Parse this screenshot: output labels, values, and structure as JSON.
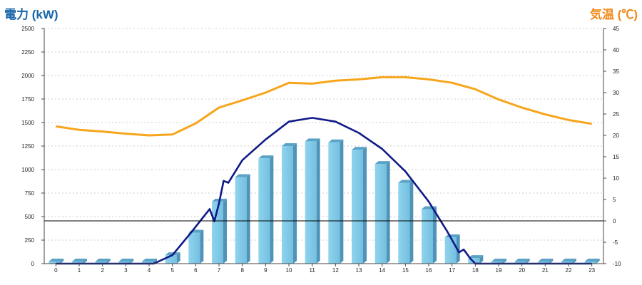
{
  "chart_data": {
    "type": "bar",
    "left_axis_title": "電力 (kW)",
    "right_axis_title": "気温 (℃)",
    "categories": [
      "0",
      "1",
      "2",
      "3",
      "4",
      "5",
      "6",
      "7",
      "8",
      "9",
      "10",
      "11",
      "12",
      "13",
      "14",
      "15",
      "16",
      "17",
      "18",
      "19",
      "20",
      "21",
      "22",
      "23"
    ],
    "left_ticks": [
      "0",
      "250",
      "500",
      "750",
      "1000",
      "1250",
      "1500",
      "1750",
      "2000",
      "2250",
      "2500"
    ],
    "right_ticks": [
      "-10",
      "-5",
      "0",
      "5",
      "10",
      "15",
      "20",
      "25",
      "30",
      "35",
      "40",
      "45"
    ],
    "ylim_left": [
      0,
      2500
    ],
    "ylim_right": [
      -10,
      45
    ],
    "grid": "dashed horizontal",
    "bar_values": [
      0,
      0,
      0,
      0,
      0,
      90,
      330,
      660,
      920,
      1120,
      1250,
      1300,
      1290,
      1210,
      1060,
      860,
      580,
      280,
      60,
      0,
      0,
      0,
      0,
      0
    ],
    "temperature_c": [
      22.1,
      21.3,
      20.9,
      20.4,
      20.0,
      20.2,
      22.8,
      26.5,
      28.2,
      30.0,
      32.3,
      32.1,
      32.8,
      33.1,
      33.6,
      33.6,
      33.1,
      32.3,
      30.8,
      28.4,
      26.5,
      24.9,
      23.6,
      22.7
    ],
    "power_curve": [
      [
        0,
        0
      ],
      [
        4.2,
        0
      ],
      [
        5,
        90
      ],
      [
        5.8,
        330
      ],
      [
        6.6,
        580
      ],
      [
        6.8,
        450
      ],
      [
        7,
        640
      ],
      [
        7.2,
        880
      ],
      [
        7.4,
        860
      ],
      [
        8,
        1100
      ],
      [
        9,
        1320
      ],
      [
        10,
        1510
      ],
      [
        11,
        1550
      ],
      [
        12,
        1510
      ],
      [
        13,
        1390
      ],
      [
        14,
        1220
      ],
      [
        15,
        980
      ],
      [
        16,
        660
      ],
      [
        16.8,
        340
      ],
      [
        17.3,
        120
      ],
      [
        17.5,
        150
      ],
      [
        17.8,
        50
      ],
      [
        18,
        0
      ],
      [
        23,
        0
      ]
    ],
    "colors": {
      "bars": "#7ec8e6",
      "bar_side": "#4f94b8",
      "power": "#101a88",
      "temperature": "#f7a51c",
      "left_title": "#1565a8",
      "right_title": "#f08a1a"
    }
  }
}
